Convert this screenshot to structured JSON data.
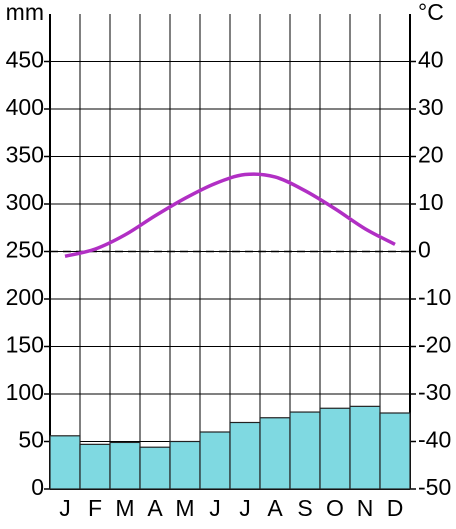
{
  "chart_data": {
    "type": "climograph",
    "y_label": "mm",
    "y2_label": "°C",
    "categories": [
      "J",
      "F",
      "M",
      "A",
      "M",
      "J",
      "J",
      "A",
      "S",
      "O",
      "N",
      "D"
    ],
    "series": [
      {
        "name": "precipitation",
        "type": "bar",
        "color": "#7fd9e1",
        "values": [
          56,
          47,
          49,
          44,
          50,
          60,
          70,
          75,
          81,
          85,
          87,
          80
        ]
      },
      {
        "name": "temperature",
        "type": "line",
        "axis": "y2",
        "color": "#b12fc4",
        "values": [
          -1,
          0.5,
          3.5,
          7.5,
          11.2,
          14.3,
          16.2,
          15.7,
          12.8,
          9,
          4.8,
          1.5
        ]
      }
    ],
    "ylim": [
      0,
      500
    ],
    "yticks": [
      0,
      50,
      100,
      150,
      200,
      250,
      300,
      350,
      400,
      450
    ],
    "y2lim": [
      -50,
      50
    ],
    "y2ticks": [
      -50,
      -40,
      -30,
      -20,
      -10,
      0,
      10,
      20,
      30,
      40
    ],
    "grid": true
  }
}
